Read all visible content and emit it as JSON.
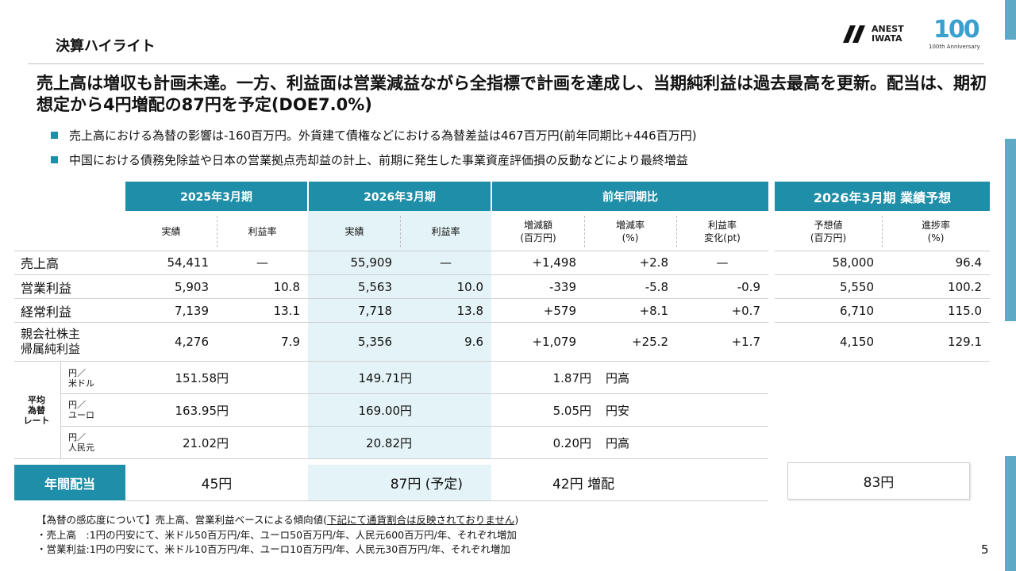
{
  "section_title": "決算ハイライト",
  "logo": {
    "line1": "ANEST",
    "line2": "IWATA",
    "anniversary_num": "100",
    "anniversary_text": "100th Anniversary"
  },
  "headline": "売上高は増収も計画未達。一方、利益面は営業減益ながら全指標で計画を達成し、当期純利益は過去最高を更新。配当は、期初想定から4円増配の87円を予定(DOE7.0%)",
  "bullets": [
    "売上高における為替の影響は-160百万円。外貨建て債権などにおける為替差益は467百万円(前年同期比+446百万円)",
    "中国における債務免除益や日本の営業拠点売却益の計上、前期に発生した事業資産評価損の反動などにより最終増益"
  ],
  "table": {
    "group_headers": [
      "2025年3月期",
      "2026年3月期",
      "前年同期比",
      "2026年3月期 業績予想"
    ],
    "sub_headers": [
      "実績",
      "利益率",
      "実績",
      "利益率",
      "増減額\n(百万円)",
      "増減率\n(%)",
      "利益率\n変化(pt)",
      "予想値\n(百万円)",
      "進捗率\n(%)"
    ],
    "rows": [
      {
        "label": "売上高",
        "cells": [
          "54,411",
          "—",
          "55,909",
          "—",
          "+1,498",
          "+2.8",
          "—",
          "58,000",
          "96.4"
        ]
      },
      {
        "label": "営業利益",
        "cells": [
          "5,903",
          "10.8",
          "5,563",
          "10.0",
          "-339",
          "-5.8",
          "-0.9",
          "5,550",
          "100.2"
        ]
      },
      {
        "label": "経常利益",
        "cells": [
          "7,139",
          "13.1",
          "7,718",
          "13.8",
          "+579",
          "+8.1",
          "+0.7",
          "6,710",
          "115.0"
        ]
      },
      {
        "label": "親会社株主\n帰属純利益",
        "cells": [
          "4,276",
          "7.9",
          "5,356",
          "9.6",
          "+1,079",
          "+25.2",
          "+1.7",
          "4,150",
          "129.1"
        ]
      }
    ],
    "fx_label": "平均\n為替\nレート",
    "fx_rows": [
      {
        "unit": "円／\n米ドル",
        "prev": "151.58円",
        "curr": "149.71円",
        "diff": "1.87円",
        "dir": "円高"
      },
      {
        "unit": "円／\nユーロ",
        "prev": "163.95円",
        "curr": "169.00円",
        "diff": "5.05円",
        "dir": "円安"
      },
      {
        "unit": "円／\n人民元",
        "prev": "21.02円",
        "curr": "20.82円",
        "diff": "0.20円",
        "dir": "円高"
      }
    ],
    "dividend": {
      "label": "年間配当",
      "prev": "45円",
      "curr": "87円 (予定)",
      "diff": "42円 増配",
      "forecast": "83円"
    }
  },
  "footnote": {
    "line1_a": "【為替の感応度について】売上高、営業利益ベースによる傾向値(",
    "line1_u": "下記にて通貨割合は反映されておりません",
    "line1_b": ")",
    "line2": "・売上高　:1円の円安にて、米ドル50百万円/年、ユーロ50百万円/年、人民元600百万円/年、それぞれ増加",
    "line3": "・営業利益:1円の円安にて、米ドル10百万円/年、ユーロ10百万円/年、人民元30百万円/年、それぞれ増加"
  },
  "page_number": "5",
  "colors": {
    "accent": "#1f8ea8",
    "shade": "#e4f3f7"
  }
}
